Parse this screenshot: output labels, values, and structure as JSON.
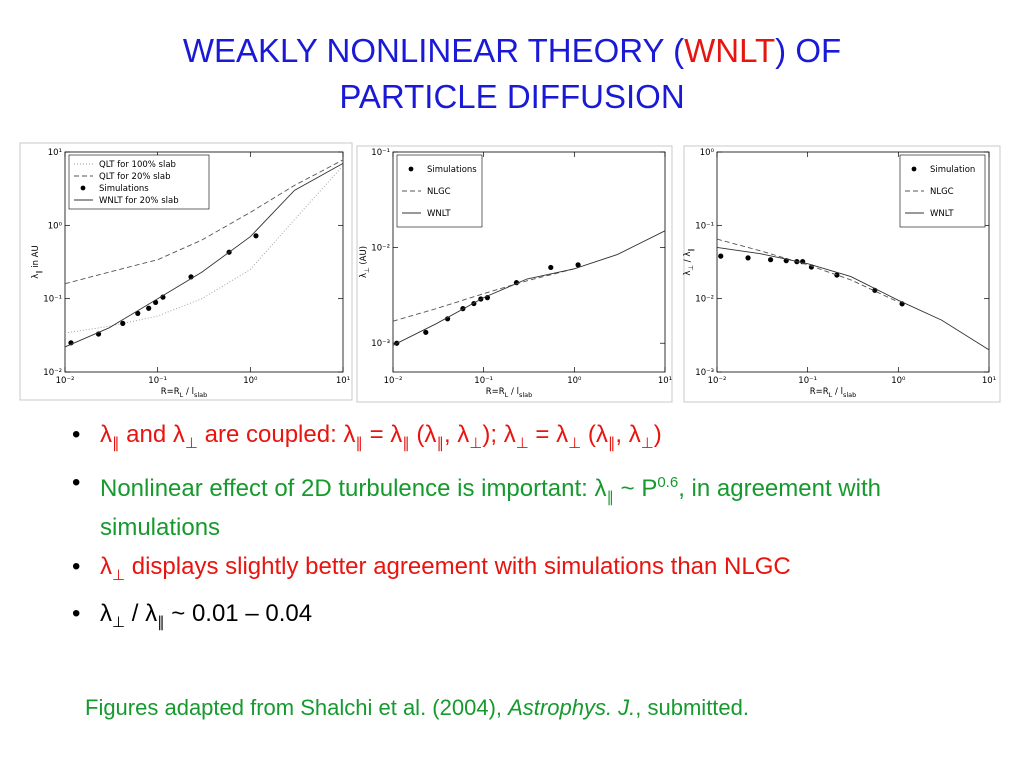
{
  "title": [
    "WEAKLY NONLINEAR THEORY (",
    "WNLT",
    ") OF",
    "PARTICLE DIFFUSION"
  ],
  "chart_data": [
    {
      "type": "line",
      "xscale": "log",
      "yscale": "log",
      "xlim": [
        0.01,
        10
      ],
      "ylim": [
        0.01,
        10
      ],
      "xticks": [
        {
          "value": 0.01,
          "label": "10⁻²"
        },
        {
          "value": 0.1,
          "label": "10⁻¹"
        },
        {
          "value": 1,
          "label": "10⁰"
        },
        {
          "value": 10,
          "label": "10¹"
        }
      ],
      "yticks": [
        {
          "value": 0.01,
          "label": "10⁻²"
        },
        {
          "value": 0.1,
          "label": "10⁻¹"
        },
        {
          "value": 1,
          "label": "10⁰"
        },
        {
          "value": 10,
          "label": "10¹"
        }
      ],
      "xlabel": [
        "R=R",
        {
          "sub": "L"
        },
        " / l",
        {
          "sub": "slab"
        }
      ],
      "ylabel": [
        "λ",
        {
          "sub": "∥"
        },
        " in AU"
      ],
      "legend": "upper left",
      "series": [
        {
          "name": "QLT for 100% slab",
          "style": "dotted",
          "color": "#9a9a9a",
          "x": [
            0.01,
            0.03,
            0.1,
            0.3,
            1,
            3,
            10
          ],
          "values": [
            0.034,
            0.042,
            0.058,
            0.1,
            0.25,
            1.2,
            6.5
          ]
        },
        {
          "name": "QLT for  20% slab",
          "style": "dashed",
          "color": "#555555",
          "x": [
            0.01,
            0.03,
            0.1,
            0.3,
            1,
            3,
            10
          ],
          "values": [
            0.16,
            0.23,
            0.34,
            0.63,
            1.5,
            3.5,
            7.8
          ]
        },
        {
          "name": "Simulations",
          "style": "markers",
          "color": "#000000",
          "x": [
            0.0116,
            0.023,
            0.042,
            0.061,
            0.08,
            0.095,
            0.114,
            0.229,
            0.59,
            1.15
          ],
          "values": [
            0.025,
            0.033,
            0.046,
            0.063,
            0.074,
            0.089,
            0.105,
            0.198,
            0.43,
            0.72
          ]
        },
        {
          "name": "WNLT for 20% slab",
          "style": "solid",
          "color": "#333333",
          "x": [
            0.01,
            0.03,
            0.1,
            0.3,
            1,
            3,
            10
          ],
          "values": [
            0.022,
            0.04,
            0.1,
            0.23,
            0.7,
            3.0,
            7.0
          ]
        }
      ]
    },
    {
      "type": "line",
      "xscale": "log",
      "yscale": "log",
      "xlim": [
        0.01,
        10
      ],
      "ylim": [
        0.0005,
        0.1
      ],
      "xticks": [
        {
          "value": 0.01,
          "label": "10⁻²"
        },
        {
          "value": 0.1,
          "label": "10⁻¹"
        },
        {
          "value": 1,
          "label": "10⁰"
        },
        {
          "value": 10,
          "label": "10¹"
        }
      ],
      "yticks": [
        {
          "value": 0.001,
          "label": "10⁻³"
        },
        {
          "value": 0.01,
          "label": "10⁻²"
        },
        {
          "value": 0.1,
          "label": "10⁻¹"
        }
      ],
      "xlabel": [
        "R=R",
        {
          "sub": "L"
        },
        " / l",
        {
          "sub": "slab"
        }
      ],
      "ylabel": [
        "λ",
        {
          "sub": "⊥"
        },
        " (AU)"
      ],
      "legend": "upper left",
      "series": [
        {
          "name": "Simulations",
          "style": "markers",
          "color": "#000000",
          "x": [
            0.011,
            0.023,
            0.04,
            0.059,
            0.078,
            0.093,
            0.11,
            0.23,
            0.55,
            1.1
          ],
          "values": [
            0.001,
            0.0013,
            0.0018,
            0.0023,
            0.0026,
            0.0029,
            0.003,
            0.0043,
            0.0062,
            0.0066
          ]
        },
        {
          "name": "NLGC",
          "style": "dashed",
          "color": "#555555",
          "x": [
            0.01,
            0.03,
            0.1,
            0.3,
            1
          ],
          "values": [
            0.0017,
            0.0023,
            0.0033,
            0.0045,
            0.006
          ]
        },
        {
          "name": "WNLT",
          "style": "solid",
          "color": "#333333",
          "x": [
            0.01,
            0.03,
            0.1,
            0.3,
            1,
            3,
            10
          ],
          "values": [
            0.00095,
            0.0016,
            0.003,
            0.0047,
            0.006,
            0.0085,
            0.015
          ]
        }
      ]
    },
    {
      "type": "line",
      "xscale": "log",
      "yscale": "log",
      "xlim": [
        0.01,
        10
      ],
      "ylim": [
        0.001,
        1
      ],
      "xticks": [
        {
          "value": 0.01,
          "label": "10⁻²"
        },
        {
          "value": 0.1,
          "label": "10⁻¹"
        },
        {
          "value": 1,
          "label": "10⁰"
        },
        {
          "value": 10,
          "label": "10¹"
        }
      ],
      "yticks": [
        {
          "value": 0.001,
          "label": "10⁻³"
        },
        {
          "value": 0.01,
          "label": "10⁻²"
        },
        {
          "value": 0.1,
          "label": "10⁻¹"
        },
        {
          "value": 1,
          "label": "10⁰"
        }
      ],
      "xlabel": [
        "R=R",
        {
          "sub": "L"
        },
        " / l",
        {
          "sub": "slab"
        }
      ],
      "ylabel": [
        "λ",
        {
          "sub": "⊥"
        },
        " / λ",
        {
          "sub": "∥"
        }
      ],
      "legend": "upper right",
      "series": [
        {
          "name": "Simulation",
          "style": "markers",
          "color": "#000000",
          "x": [
            0.011,
            0.022,
            0.039,
            0.058,
            0.076,
            0.088,
            0.11,
            0.21,
            0.55,
            1.1
          ],
          "values": [
            0.038,
            0.036,
            0.034,
            0.033,
            0.032,
            0.032,
            0.027,
            0.021,
            0.013,
            0.0085
          ]
        },
        {
          "name": "NLGC",
          "style": "dashed",
          "color": "#555555",
          "x": [
            0.01,
            0.03,
            0.1,
            0.3,
            1
          ],
          "values": [
            0.065,
            0.045,
            0.029,
            0.018,
            0.009
          ]
        },
        {
          "name": "WNLT",
          "style": "solid",
          "color": "#333333",
          "x": [
            0.01,
            0.03,
            0.1,
            0.3,
            1,
            3,
            10
          ],
          "values": [
            0.05,
            0.041,
            0.03,
            0.02,
            0.0095,
            0.0051,
            0.002
          ]
        }
      ]
    }
  ],
  "bullets": [
    {
      "color": "#e8140f",
      "text": [
        "λ",
        {
          "sub": "∥"
        },
        " and λ",
        {
          "sub": "⊥"
        },
        " are coupled: λ",
        {
          "sub": "∥"
        },
        " = λ",
        {
          "sub": "∥"
        },
        " (λ",
        {
          "sub": "∥"
        },
        ", λ",
        {
          "sub": "⊥"
        },
        "); λ",
        {
          "sub": "⊥"
        },
        " = λ",
        {
          "sub": "⊥"
        },
        " (λ",
        {
          "sub": "∥"
        },
        ", λ",
        {
          "sub": "⊥"
        },
        ")"
      ]
    },
    {
      "color": "#169a2e",
      "text": [
        "Nonlinear effect of 2D turbulence is important: λ",
        {
          "sub": "∥"
        },
        " ~ P",
        {
          "sup": "0.6"
        },
        ", in agreement with simulations"
      ]
    },
    {
      "color": "#e8140f",
      "text": [
        "λ",
        {
          "sub": "⊥"
        },
        " displays slightly better agreement with simulations than NLGC"
      ]
    },
    {
      "color": "#000000",
      "text": [
        "λ",
        {
          "sub": "⊥"
        },
        " / λ",
        {
          "sub": "∥"
        },
        " ~ 0.01 – 0.04"
      ]
    }
  ],
  "caption": [
    "Figures adapted from Shalchi et al. (2004), ",
    {
      "i": "Astrophys. J."
    },
    ", submitted."
  ]
}
